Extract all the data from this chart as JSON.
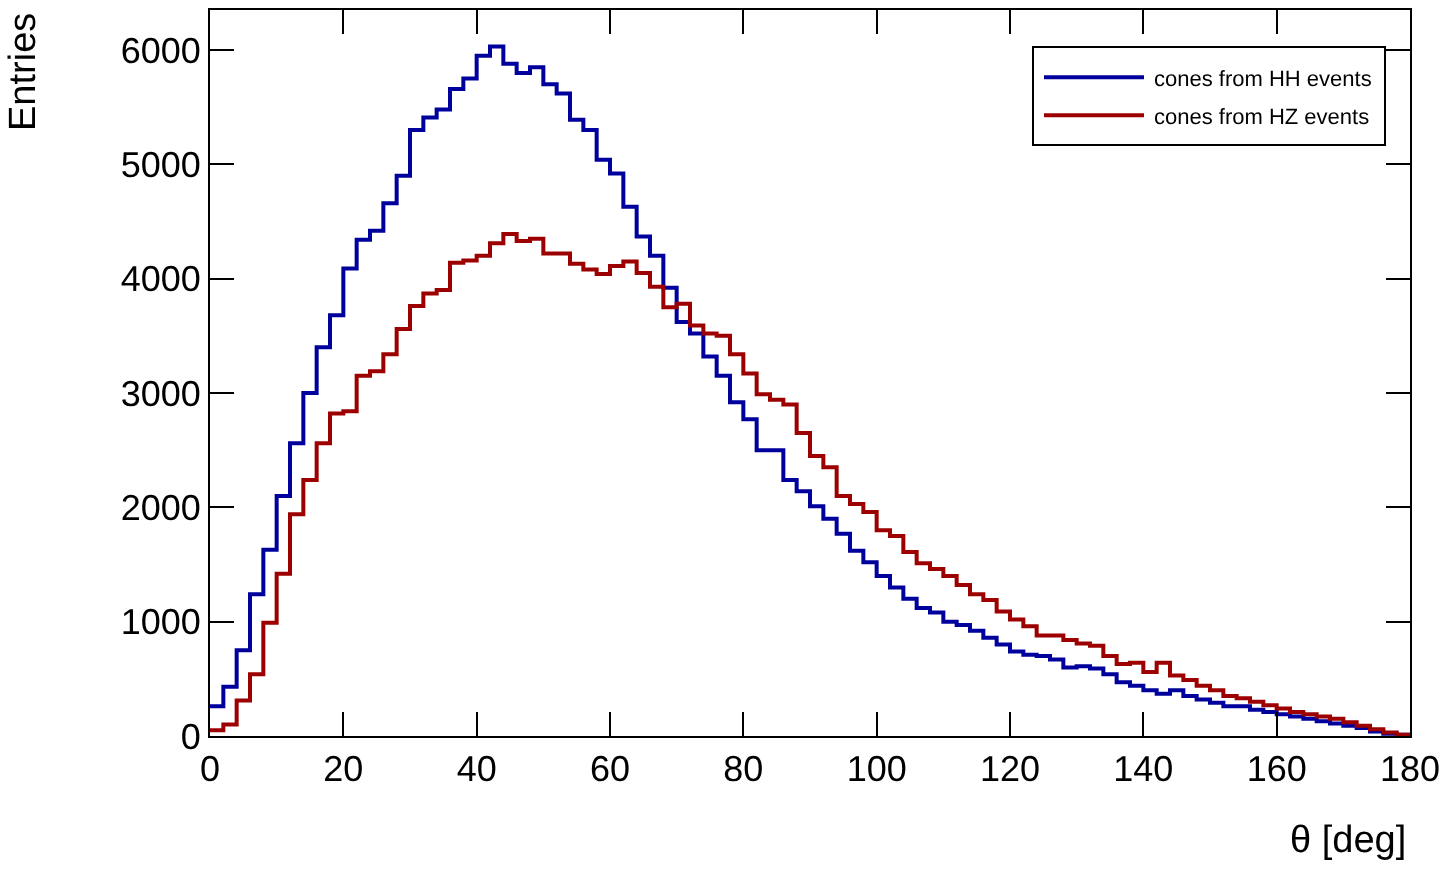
{
  "chart_data": {
    "type": "histogram",
    "xlabel": "θ [deg]",
    "ylabel": "Entries",
    "bins": [
      0,
      2,
      4,
      6,
      8,
      10,
      12,
      14,
      16,
      18,
      20,
      22,
      24,
      26,
      28,
      30,
      32,
      34,
      36,
      38,
      40,
      42,
      44,
      46,
      48,
      50,
      52,
      54,
      56,
      58,
      60,
      62,
      64,
      66,
      68,
      70,
      72,
      74,
      76,
      78,
      80,
      82,
      84,
      86,
      88,
      90,
      92,
      94,
      96,
      98,
      100,
      102,
      104,
      106,
      108,
      110,
      112,
      114,
      116,
      118,
      120,
      122,
      124,
      126,
      128,
      130,
      132,
      134,
      136,
      138,
      140,
      142,
      144,
      146,
      148,
      150,
      152,
      154,
      156,
      158,
      160,
      162,
      164,
      166,
      168,
      170,
      172,
      174,
      176,
      178,
      180
    ],
    "series": [
      {
        "name": "cones from HH events",
        "color": "#00009c",
        "values": [
          260,
          430,
          750,
          1240,
          1630,
          2100,
          2560,
          3000,
          3400,
          3680,
          4090,
          4340,
          4420,
          4660,
          4900,
          5300,
          5410,
          5480,
          5660,
          5750,
          5950,
          6030,
          5880,
          5800,
          5850,
          5700,
          5620,
          5390,
          5300,
          5040,
          4920,
          4630,
          4370,
          4200,
          3920,
          3620,
          3520,
          3320,
          3150,
          2920,
          2770,
          2500,
          2500,
          2240,
          2140,
          2010,
          1900,
          1770,
          1620,
          1520,
          1400,
          1300,
          1200,
          1120,
          1080,
          1000,
          970,
          920,
          860,
          800,
          740,
          710,
          700,
          670,
          600,
          610,
          590,
          540,
          470,
          440,
          400,
          370,
          400,
          350,
          320,
          290,
          260,
          260,
          230,
          210,
          190,
          170,
          150,
          130,
          110,
          90,
          70,
          40,
          20,
          10
        ]
      },
      {
        "name": "cones from HZ events",
        "color": "#9c0000",
        "values": [
          50,
          100,
          310,
          540,
          990,
          1420,
          1940,
          2240,
          2560,
          2820,
          2840,
          3150,
          3190,
          3340,
          3560,
          3760,
          3870,
          3900,
          4140,
          4160,
          4200,
          4310,
          4390,
          4330,
          4350,
          4220,
          4220,
          4130,
          4080,
          4040,
          4110,
          4150,
          4050,
          3930,
          3750,
          3780,
          3590,
          3520,
          3500,
          3340,
          3170,
          2990,
          2940,
          2900,
          2650,
          2450,
          2350,
          2100,
          2030,
          1960,
          1800,
          1750,
          1610,
          1510,
          1460,
          1400,
          1320,
          1240,
          1190,
          1090,
          1020,
          960,
          880,
          880,
          840,
          810,
          790,
          700,
          630,
          640,
          560,
          640,
          530,
          490,
          440,
          400,
          350,
          330,
          300,
          270,
          240,
          210,
          190,
          170,
          150,
          120,
          90,
          60,
          30,
          10
        ]
      }
    ],
    "xlim": [
      0,
      180
    ],
    "xticks": [
      0,
      20,
      40,
      60,
      80,
      100,
      120,
      140,
      160,
      180
    ],
    "ylim": [
      0,
      6350
    ],
    "yticks": [
      0,
      1000,
      2000,
      3000,
      4000,
      5000,
      6000
    ],
    "grid": false,
    "legend": "top right"
  }
}
